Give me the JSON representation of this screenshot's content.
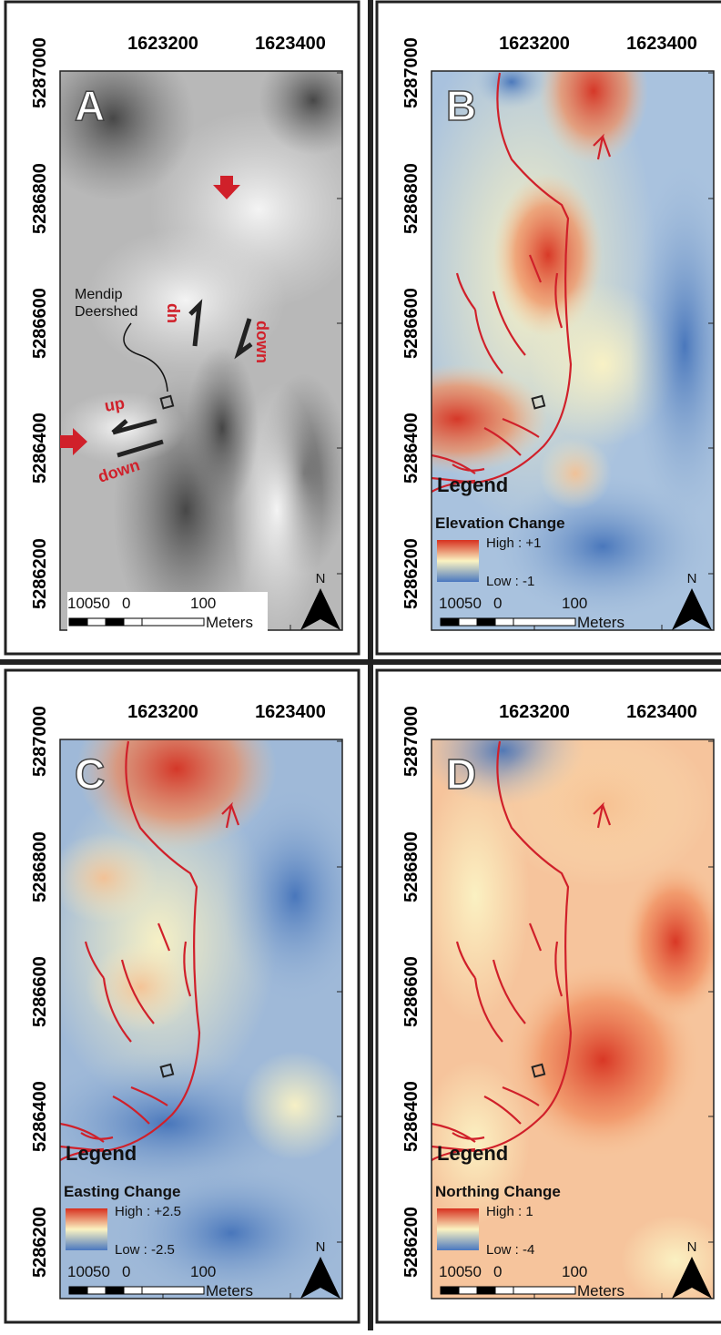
{
  "panels": [
    {
      "letter": "A",
      "x_labels": [
        "1623200",
        "1623400"
      ],
      "y_labels": [
        "5287000",
        "5286800",
        "5286600",
        "5286400",
        "5286200"
      ],
      "annotations": {
        "site": "Mendip\nDeershed",
        "up_1": "up",
        "down_1": "down",
        "up_2": "up",
        "down_2": "down"
      },
      "scale_labels": [
        "100",
        "50",
        "0",
        "100"
      ],
      "scale_unit": "Meters",
      "north": "N"
    },
    {
      "letter": "B",
      "x_labels": [
        "1623200",
        "1623400"
      ],
      "y_labels": [
        "5287000",
        "5286800",
        "5286600",
        "5286400",
        "5286200"
      ],
      "legend": {
        "title": "Legend",
        "variable": "Elevation Change",
        "high": "High : +1",
        "low": "Low : -1"
      },
      "scale_labels": [
        "100",
        "50",
        "0",
        "100"
      ],
      "scale_unit": "Meters",
      "north": "N"
    },
    {
      "letter": "C",
      "x_labels": [
        "1623200",
        "1623400"
      ],
      "y_labels": [
        "5287000",
        "5286800",
        "5286600",
        "5286400",
        "5286200"
      ],
      "legend": {
        "title": "Legend",
        "variable": "Easting Change",
        "high": "High : +2.5",
        "low": "Low : -2.5"
      },
      "scale_labels": [
        "100",
        "50",
        "0",
        "100"
      ],
      "scale_unit": "Meters",
      "north": "N"
    },
    {
      "letter": "D",
      "x_labels": [
        "1623200",
        "1623400"
      ],
      "y_labels": [
        "5287000",
        "5286800",
        "5286600",
        "5286400",
        "5286200"
      ],
      "legend": {
        "title": "Legend",
        "variable": "Northing Change",
        "high": "High : 1",
        "low": "Low : -4"
      },
      "scale_labels": [
        "100",
        "50",
        "0",
        "100"
      ],
      "scale_unit": "Meters",
      "north": "N"
    }
  ]
}
